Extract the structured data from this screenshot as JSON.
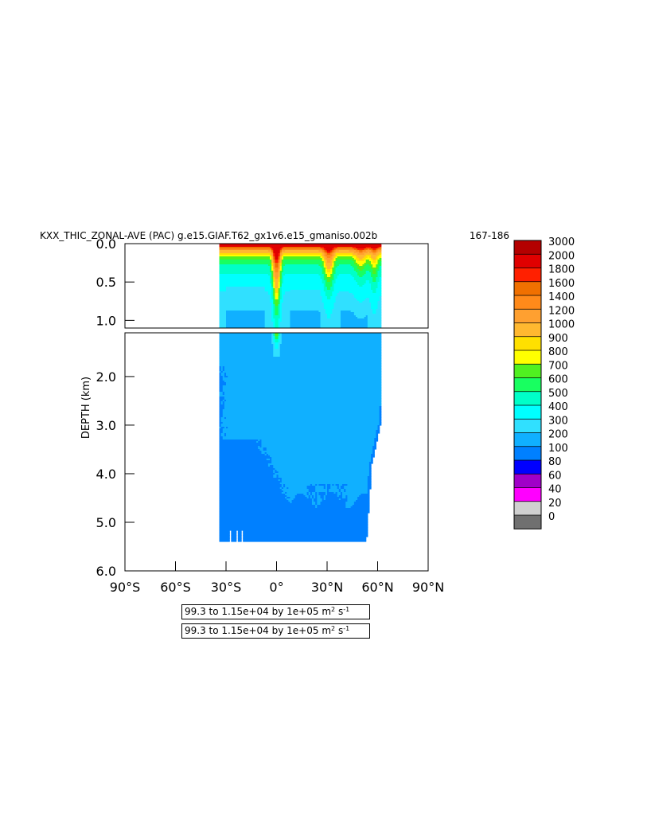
{
  "chart_data": {
    "type": "heatmap",
    "title": "KXX_THIC_ZONAL-AVE (PAC) g.e15.GIAF.T62_gx1v6.e15_gmaniso.002b",
    "title_years": "167-186",
    "ylabel": "DEPTH (km)",
    "xlim": [
      -90,
      90
    ],
    "ylim": [
      6.0,
      0.0
    ],
    "split_depth": 1.1,
    "x_ticks": [
      {
        "value": -90,
        "label": "90°S"
      },
      {
        "value": -60,
        "label": "60°S"
      },
      {
        "value": -30,
        "label": "30°S"
      },
      {
        "value": 0,
        "label": "0°"
      },
      {
        "value": 30,
        "label": "30°N"
      },
      {
        "value": 60,
        "label": "60°N"
      },
      {
        "value": 90,
        "label": "90°N"
      }
    ],
    "y_ticks_upper": [
      {
        "value": 0.0,
        "label": "0.0"
      },
      {
        "value": 0.5,
        "label": "0.5"
      },
      {
        "value": 1.0,
        "label": "1.0"
      }
    ],
    "y_ticks_lower": [
      {
        "value": 2.0,
        "label": "2.0"
      },
      {
        "value": 3.0,
        "label": "3.0"
      },
      {
        "value": 4.0,
        "label": "4.0"
      },
      {
        "value": 5.0,
        "label": "5.0"
      },
      {
        "value": 6.0,
        "label": "6.0"
      }
    ],
    "contour_levels": [
      0,
      20,
      40,
      60,
      80,
      100,
      200,
      300,
      400,
      500,
      600,
      700,
      800,
      900,
      1000,
      1200,
      1400,
      1600,
      1800,
      2000,
      3000
    ],
    "colorbar_labels": [
      "3000",
      "2000",
      "1800",
      "1600",
      "1400",
      "1200",
      "1000",
      "900",
      "800",
      "700",
      "600",
      "500",
      "400",
      "300",
      "200",
      "100",
      "80",
      "60",
      "40",
      "20",
      "0"
    ],
    "colorbar_colors": [
      "#b40000",
      "#e00000",
      "#ff2000",
      "#f07000",
      "#ff8a1a",
      "#ffa030",
      "#ffb830",
      "#ffe000",
      "#ffff00",
      "#50f020",
      "#18ff60",
      "#00ffc8",
      "#00ffff",
      "#30e0ff",
      "#10b0ff",
      "#0080ff",
      "#0000ff",
      "#a000c8",
      "#ff00ff",
      "#d0d0d0",
      "#707070"
    ],
    "data_region": {
      "lat_min": -34,
      "lat_max": 62,
      "depth_max_km": 5.4
    },
    "range_note": "99.3 to 1.15e+04 by 1e+05",
    "units": "m",
    "units_exp": "2",
    "units_time": "s",
    "units_time_exp": "-1"
  }
}
